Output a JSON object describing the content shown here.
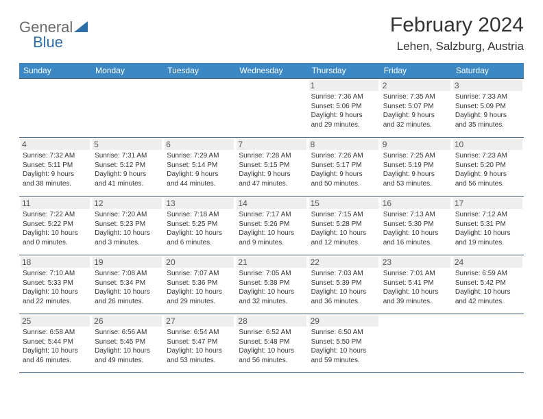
{
  "logo": {
    "text_general": "General",
    "text_blue": "Blue",
    "triangle_color": "#2f6fa8"
  },
  "header": {
    "month_title": "February 2024",
    "location": "Lehen, Salzburg, Austria"
  },
  "colors": {
    "header_bg": "#3b88c4",
    "header_text": "#ffffff",
    "border": "#2b4a6a",
    "daynum_bg": "#eeeeee",
    "text": "#333333"
  },
  "weekdays": [
    "Sunday",
    "Monday",
    "Tuesday",
    "Wednesday",
    "Thursday",
    "Friday",
    "Saturday"
  ],
  "weeks": [
    [
      {
        "num": "",
        "lines": []
      },
      {
        "num": "",
        "lines": []
      },
      {
        "num": "",
        "lines": []
      },
      {
        "num": "",
        "lines": []
      },
      {
        "num": "1",
        "lines": [
          "Sunrise: 7:36 AM",
          "Sunset: 5:06 PM",
          "Daylight: 9 hours",
          "and 29 minutes."
        ]
      },
      {
        "num": "2",
        "lines": [
          "Sunrise: 7:35 AM",
          "Sunset: 5:07 PM",
          "Daylight: 9 hours",
          "and 32 minutes."
        ]
      },
      {
        "num": "3",
        "lines": [
          "Sunrise: 7:33 AM",
          "Sunset: 5:09 PM",
          "Daylight: 9 hours",
          "and 35 minutes."
        ]
      }
    ],
    [
      {
        "num": "4",
        "lines": [
          "Sunrise: 7:32 AM",
          "Sunset: 5:11 PM",
          "Daylight: 9 hours",
          "and 38 minutes."
        ]
      },
      {
        "num": "5",
        "lines": [
          "Sunrise: 7:31 AM",
          "Sunset: 5:12 PM",
          "Daylight: 9 hours",
          "and 41 minutes."
        ]
      },
      {
        "num": "6",
        "lines": [
          "Sunrise: 7:29 AM",
          "Sunset: 5:14 PM",
          "Daylight: 9 hours",
          "and 44 minutes."
        ]
      },
      {
        "num": "7",
        "lines": [
          "Sunrise: 7:28 AM",
          "Sunset: 5:15 PM",
          "Daylight: 9 hours",
          "and 47 minutes."
        ]
      },
      {
        "num": "8",
        "lines": [
          "Sunrise: 7:26 AM",
          "Sunset: 5:17 PM",
          "Daylight: 9 hours",
          "and 50 minutes."
        ]
      },
      {
        "num": "9",
        "lines": [
          "Sunrise: 7:25 AM",
          "Sunset: 5:19 PM",
          "Daylight: 9 hours",
          "and 53 minutes."
        ]
      },
      {
        "num": "10",
        "lines": [
          "Sunrise: 7:23 AM",
          "Sunset: 5:20 PM",
          "Daylight: 9 hours",
          "and 56 minutes."
        ]
      }
    ],
    [
      {
        "num": "11",
        "lines": [
          "Sunrise: 7:22 AM",
          "Sunset: 5:22 PM",
          "Daylight: 10 hours",
          "and 0 minutes."
        ]
      },
      {
        "num": "12",
        "lines": [
          "Sunrise: 7:20 AM",
          "Sunset: 5:23 PM",
          "Daylight: 10 hours",
          "and 3 minutes."
        ]
      },
      {
        "num": "13",
        "lines": [
          "Sunrise: 7:18 AM",
          "Sunset: 5:25 PM",
          "Daylight: 10 hours",
          "and 6 minutes."
        ]
      },
      {
        "num": "14",
        "lines": [
          "Sunrise: 7:17 AM",
          "Sunset: 5:26 PM",
          "Daylight: 10 hours",
          "and 9 minutes."
        ]
      },
      {
        "num": "15",
        "lines": [
          "Sunrise: 7:15 AM",
          "Sunset: 5:28 PM",
          "Daylight: 10 hours",
          "and 12 minutes."
        ]
      },
      {
        "num": "16",
        "lines": [
          "Sunrise: 7:13 AM",
          "Sunset: 5:30 PM",
          "Daylight: 10 hours",
          "and 16 minutes."
        ]
      },
      {
        "num": "17",
        "lines": [
          "Sunrise: 7:12 AM",
          "Sunset: 5:31 PM",
          "Daylight: 10 hours",
          "and 19 minutes."
        ]
      }
    ],
    [
      {
        "num": "18",
        "lines": [
          "Sunrise: 7:10 AM",
          "Sunset: 5:33 PM",
          "Daylight: 10 hours",
          "and 22 minutes."
        ]
      },
      {
        "num": "19",
        "lines": [
          "Sunrise: 7:08 AM",
          "Sunset: 5:34 PM",
          "Daylight: 10 hours",
          "and 26 minutes."
        ]
      },
      {
        "num": "20",
        "lines": [
          "Sunrise: 7:07 AM",
          "Sunset: 5:36 PM",
          "Daylight: 10 hours",
          "and 29 minutes."
        ]
      },
      {
        "num": "21",
        "lines": [
          "Sunrise: 7:05 AM",
          "Sunset: 5:38 PM",
          "Daylight: 10 hours",
          "and 32 minutes."
        ]
      },
      {
        "num": "22",
        "lines": [
          "Sunrise: 7:03 AM",
          "Sunset: 5:39 PM",
          "Daylight: 10 hours",
          "and 36 minutes."
        ]
      },
      {
        "num": "23",
        "lines": [
          "Sunrise: 7:01 AM",
          "Sunset: 5:41 PM",
          "Daylight: 10 hours",
          "and 39 minutes."
        ]
      },
      {
        "num": "24",
        "lines": [
          "Sunrise: 6:59 AM",
          "Sunset: 5:42 PM",
          "Daylight: 10 hours",
          "and 42 minutes."
        ]
      }
    ],
    [
      {
        "num": "25",
        "lines": [
          "Sunrise: 6:58 AM",
          "Sunset: 5:44 PM",
          "Daylight: 10 hours",
          "and 46 minutes."
        ]
      },
      {
        "num": "26",
        "lines": [
          "Sunrise: 6:56 AM",
          "Sunset: 5:45 PM",
          "Daylight: 10 hours",
          "and 49 minutes."
        ]
      },
      {
        "num": "27",
        "lines": [
          "Sunrise: 6:54 AM",
          "Sunset: 5:47 PM",
          "Daylight: 10 hours",
          "and 53 minutes."
        ]
      },
      {
        "num": "28",
        "lines": [
          "Sunrise: 6:52 AM",
          "Sunset: 5:48 PM",
          "Daylight: 10 hours",
          "and 56 minutes."
        ]
      },
      {
        "num": "29",
        "lines": [
          "Sunrise: 6:50 AM",
          "Sunset: 5:50 PM",
          "Daylight: 10 hours",
          "and 59 minutes."
        ]
      },
      {
        "num": "",
        "lines": []
      },
      {
        "num": "",
        "lines": []
      }
    ]
  ]
}
